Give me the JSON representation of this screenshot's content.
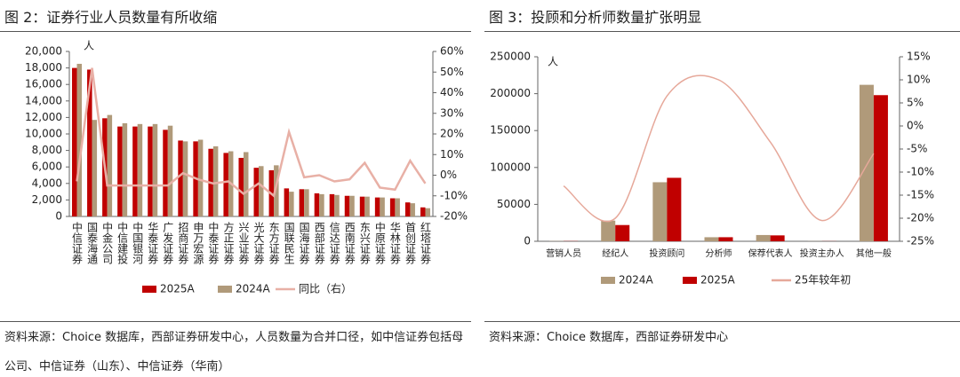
{
  "chart_data": [
    {
      "type": "bar",
      "title": "图 2：证券行业人员数量有所收缩",
      "unit_label": "人",
      "categories": [
        "中信证券",
        "国泰海通",
        "中金公司",
        "中信建投",
        "中国银河",
        "华泰证券",
        "广发证券",
        "招商证券",
        "申万宏源",
        "中泰证券",
        "方正证券",
        "兴业证券",
        "光大证券",
        "东方证券",
        "国联民生",
        "国海证券",
        "西部证券",
        "信达证券",
        "西南证券",
        "东兴证券",
        "中原证券",
        "华林证券",
        "首创证券",
        "红塔证券"
      ],
      "series": [
        {
          "name": "2025A",
          "color": "#c00000",
          "values": [
            18000,
            17800,
            11900,
            10900,
            10900,
            10900,
            10500,
            9200,
            9100,
            8200,
            7700,
            7100,
            5900,
            5600,
            3400,
            3300,
            2800,
            2700,
            2500,
            2400,
            2300,
            2200,
            1700,
            1100
          ]
        },
        {
          "name": "2024A",
          "color": "#b09a7a",
          "values": [
            18500,
            11700,
            12300,
            11300,
            11200,
            11200,
            11000,
            9100,
            9300,
            8500,
            7900,
            7800,
            6100,
            6200,
            3000,
            3300,
            2700,
            2600,
            2500,
            2400,
            2300,
            2200,
            1600,
            1000
          ]
        },
        {
          "name": "同比（右）",
          "color": "#e8b0a6",
          "axis": "y2",
          "values": [
            -3,
            52,
            -5,
            -5,
            -5,
            -5,
            -5,
            1,
            -2,
            -4,
            -3,
            -9,
            -4,
            -10,
            21,
            -1,
            0,
            -3,
            -2,
            6,
            -6,
            -7,
            7,
            -4
          ]
        }
      ],
      "smooth": false,
      "ylim": [
        0,
        20000
      ],
      "yticks": [
        0,
        {
          "value": 2000,
          "label": "2,000"
        },
        {
          "value": 4000,
          "label": "4,000"
        },
        {
          "value": 6000,
          "label": "6,000"
        },
        {
          "value": 8000,
          "label": "8,000"
        },
        {
          "value": 10000,
          "label": "10,000"
        },
        {
          "value": 12000,
          "label": "12,000"
        },
        {
          "value": 14000,
          "label": "14,000"
        },
        {
          "value": 16000,
          "label": "16,000"
        },
        {
          "value": 18000,
          "label": "18,000"
        },
        {
          "value": 20000,
          "label": "20,000"
        }
      ],
      "y2lim": [
        -20,
        60
      ],
      "y2ticks": [
        {
          "value": -20,
          "label": "-20%"
        },
        {
          "value": -10,
          "label": "-10%"
        },
        {
          "value": 0,
          "label": "0%"
        },
        {
          "value": 10,
          "label": "10%"
        },
        {
          "value": 20,
          "label": "20%"
        },
        {
          "value": 30,
          "label": "30%"
        },
        {
          "value": 40,
          "label": "40%"
        },
        {
          "value": 50,
          "label": "50%"
        },
        {
          "value": 60,
          "label": "60%"
        }
      ],
      "source": "资料来源：Choice 数据库，西部证券研发中心，人员数量为合并口径，如中信证券包括母公司、中信证券（山东）、中信证券（华南）"
    },
    {
      "type": "bar",
      "title": "图 3：投顾和分析师数量扩张明显",
      "unit_label": "人",
      "categories": [
        "营销人员",
        "经纪人",
        "投资顾问",
        "分析师",
        "保荐代表人",
        "投资主办人",
        "其他一般"
      ],
      "series": [
        {
          "name": "2024A",
          "color": "#b09a7a",
          "values": [
            300,
            28000,
            80000,
            5500,
            8500,
            200,
            212000
          ]
        },
        {
          "name": "2025A",
          "color": "#c00000",
          "values": [
            250,
            22000,
            86000,
            5500,
            8000,
            150,
            198000
          ]
        },
        {
          "name": "25年较年初",
          "color": "#e6a89a",
          "axis": "y2",
          "values": [
            -13,
            -20,
            6.5,
            10,
            -3.5,
            -20.5,
            -6
          ]
        }
      ],
      "smooth": true,
      "ylim": [
        0,
        250000
      ],
      "yticks": [
        0,
        50000,
        100000,
        150000,
        200000,
        250000
      ],
      "y2lim": [
        -25,
        15
      ],
      "y2ticks": [
        {
          "value": -25,
          "label": "-25%"
        },
        {
          "value": -20,
          "label": "-20%"
        },
        {
          "value": -15,
          "label": "-15%"
        },
        {
          "value": -10,
          "label": "-10%"
        },
        {
          "value": -5,
          "label": "-5%"
        },
        {
          "value": 0,
          "label": "0%"
        },
        {
          "value": 5,
          "label": "5%"
        },
        {
          "value": 10,
          "label": "10%"
        },
        {
          "value": 15,
          "label": "15%"
        }
      ],
      "source": "资料来源：Choice 数据库，西部证券研发中心"
    }
  ]
}
